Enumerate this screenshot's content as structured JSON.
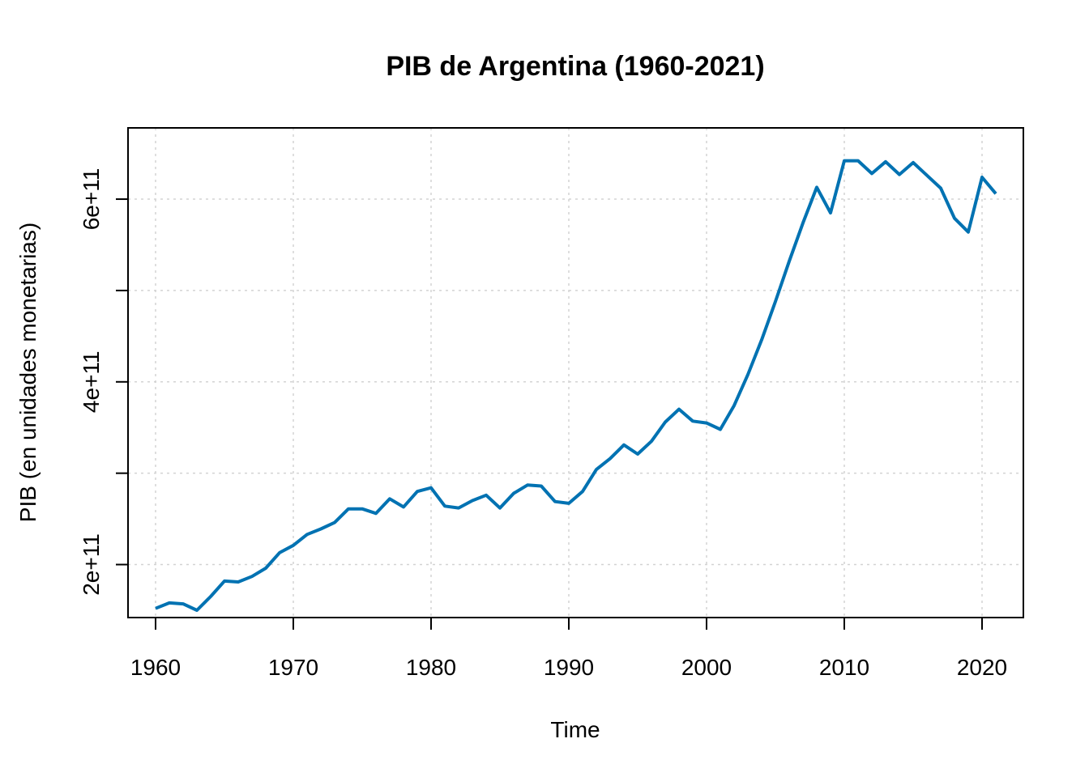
{
  "chart_data": {
    "type": "line",
    "title": "PIB de Argentina (1960-2021)",
    "xlabel": "Time",
    "ylabel": "PIB (en unidades monetarias)",
    "xlim": [
      1958,
      2023
    ],
    "ylim": [
      142000000000,
      678000000000
    ],
    "xticks": [
      1960,
      1970,
      1980,
      1990,
      2000,
      2010,
      2020
    ],
    "xtick_labels": [
      "1960",
      "1970",
      "1980",
      "1990",
      "2000",
      "2010",
      "2020"
    ],
    "yticks": [
      200000000000,
      300000000000,
      400000000000,
      500000000000,
      600000000000
    ],
    "ytick_labels": [
      "2e+11",
      "",
      "4e+11",
      "",
      "6e+11"
    ],
    "grid": true,
    "line_color": "#0072b2",
    "grid_color": "#d3d3d3",
    "series": [
      {
        "x": [
          1960,
          1961,
          1962,
          1963,
          1964,
          1965,
          1966,
          1967,
          1968,
          1969,
          1970,
          1971,
          1972,
          1973,
          1974,
          1975,
          1976,
          1977,
          1978,
          1979,
          1980,
          1981,
          1982,
          1983,
          1984,
          1985,
          1986,
          1987,
          1988,
          1989,
          1990,
          1991,
          1992,
          1993,
          1994,
          1995,
          1996,
          1997,
          1998,
          1999,
          2000,
          2001,
          2002,
          2003,
          2004,
          2005,
          2006,
          2007,
          2008,
          2009,
          2010,
          2011,
          2012,
          2013,
          2014,
          2015,
          2016,
          2017,
          2018,
          2019,
          2020,
          2021
        ],
        "values": [
          152000000000,
          158000000000,
          157000000000,
          150000000000,
          165000000000,
          182000000000,
          181000000000,
          187000000000,
          196000000000,
          213000000000,
          221000000000,
          233000000000,
          239000000000,
          246000000000,
          261000000000,
          261000000000,
          256000000000,
          272000000000,
          263000000000,
          280000000000,
          284000000000,
          264000000000,
          262000000000,
          270000000000,
          276000000000,
          262000000000,
          278000000000,
          287000000000,
          286000000000,
          269000000000,
          267000000000,
          280000000000,
          304000000000,
          316000000000,
          331000000000,
          321000000000,
          335000000000,
          356000000000,
          370000000000,
          357000000000,
          355000000000,
          348000000000,
          374000000000,
          408000000000,
          446000000000,
          488000000000,
          532000000000,
          574000000000,
          613000000000,
          585000000000,
          642000000000,
          642000000000,
          628000000000,
          641000000000,
          627000000000,
          640000000000,
          626000000000,
          612000000000,
          579000000000,
          564000000000,
          624000000000,
          606000000000
        ]
      }
    ]
  }
}
